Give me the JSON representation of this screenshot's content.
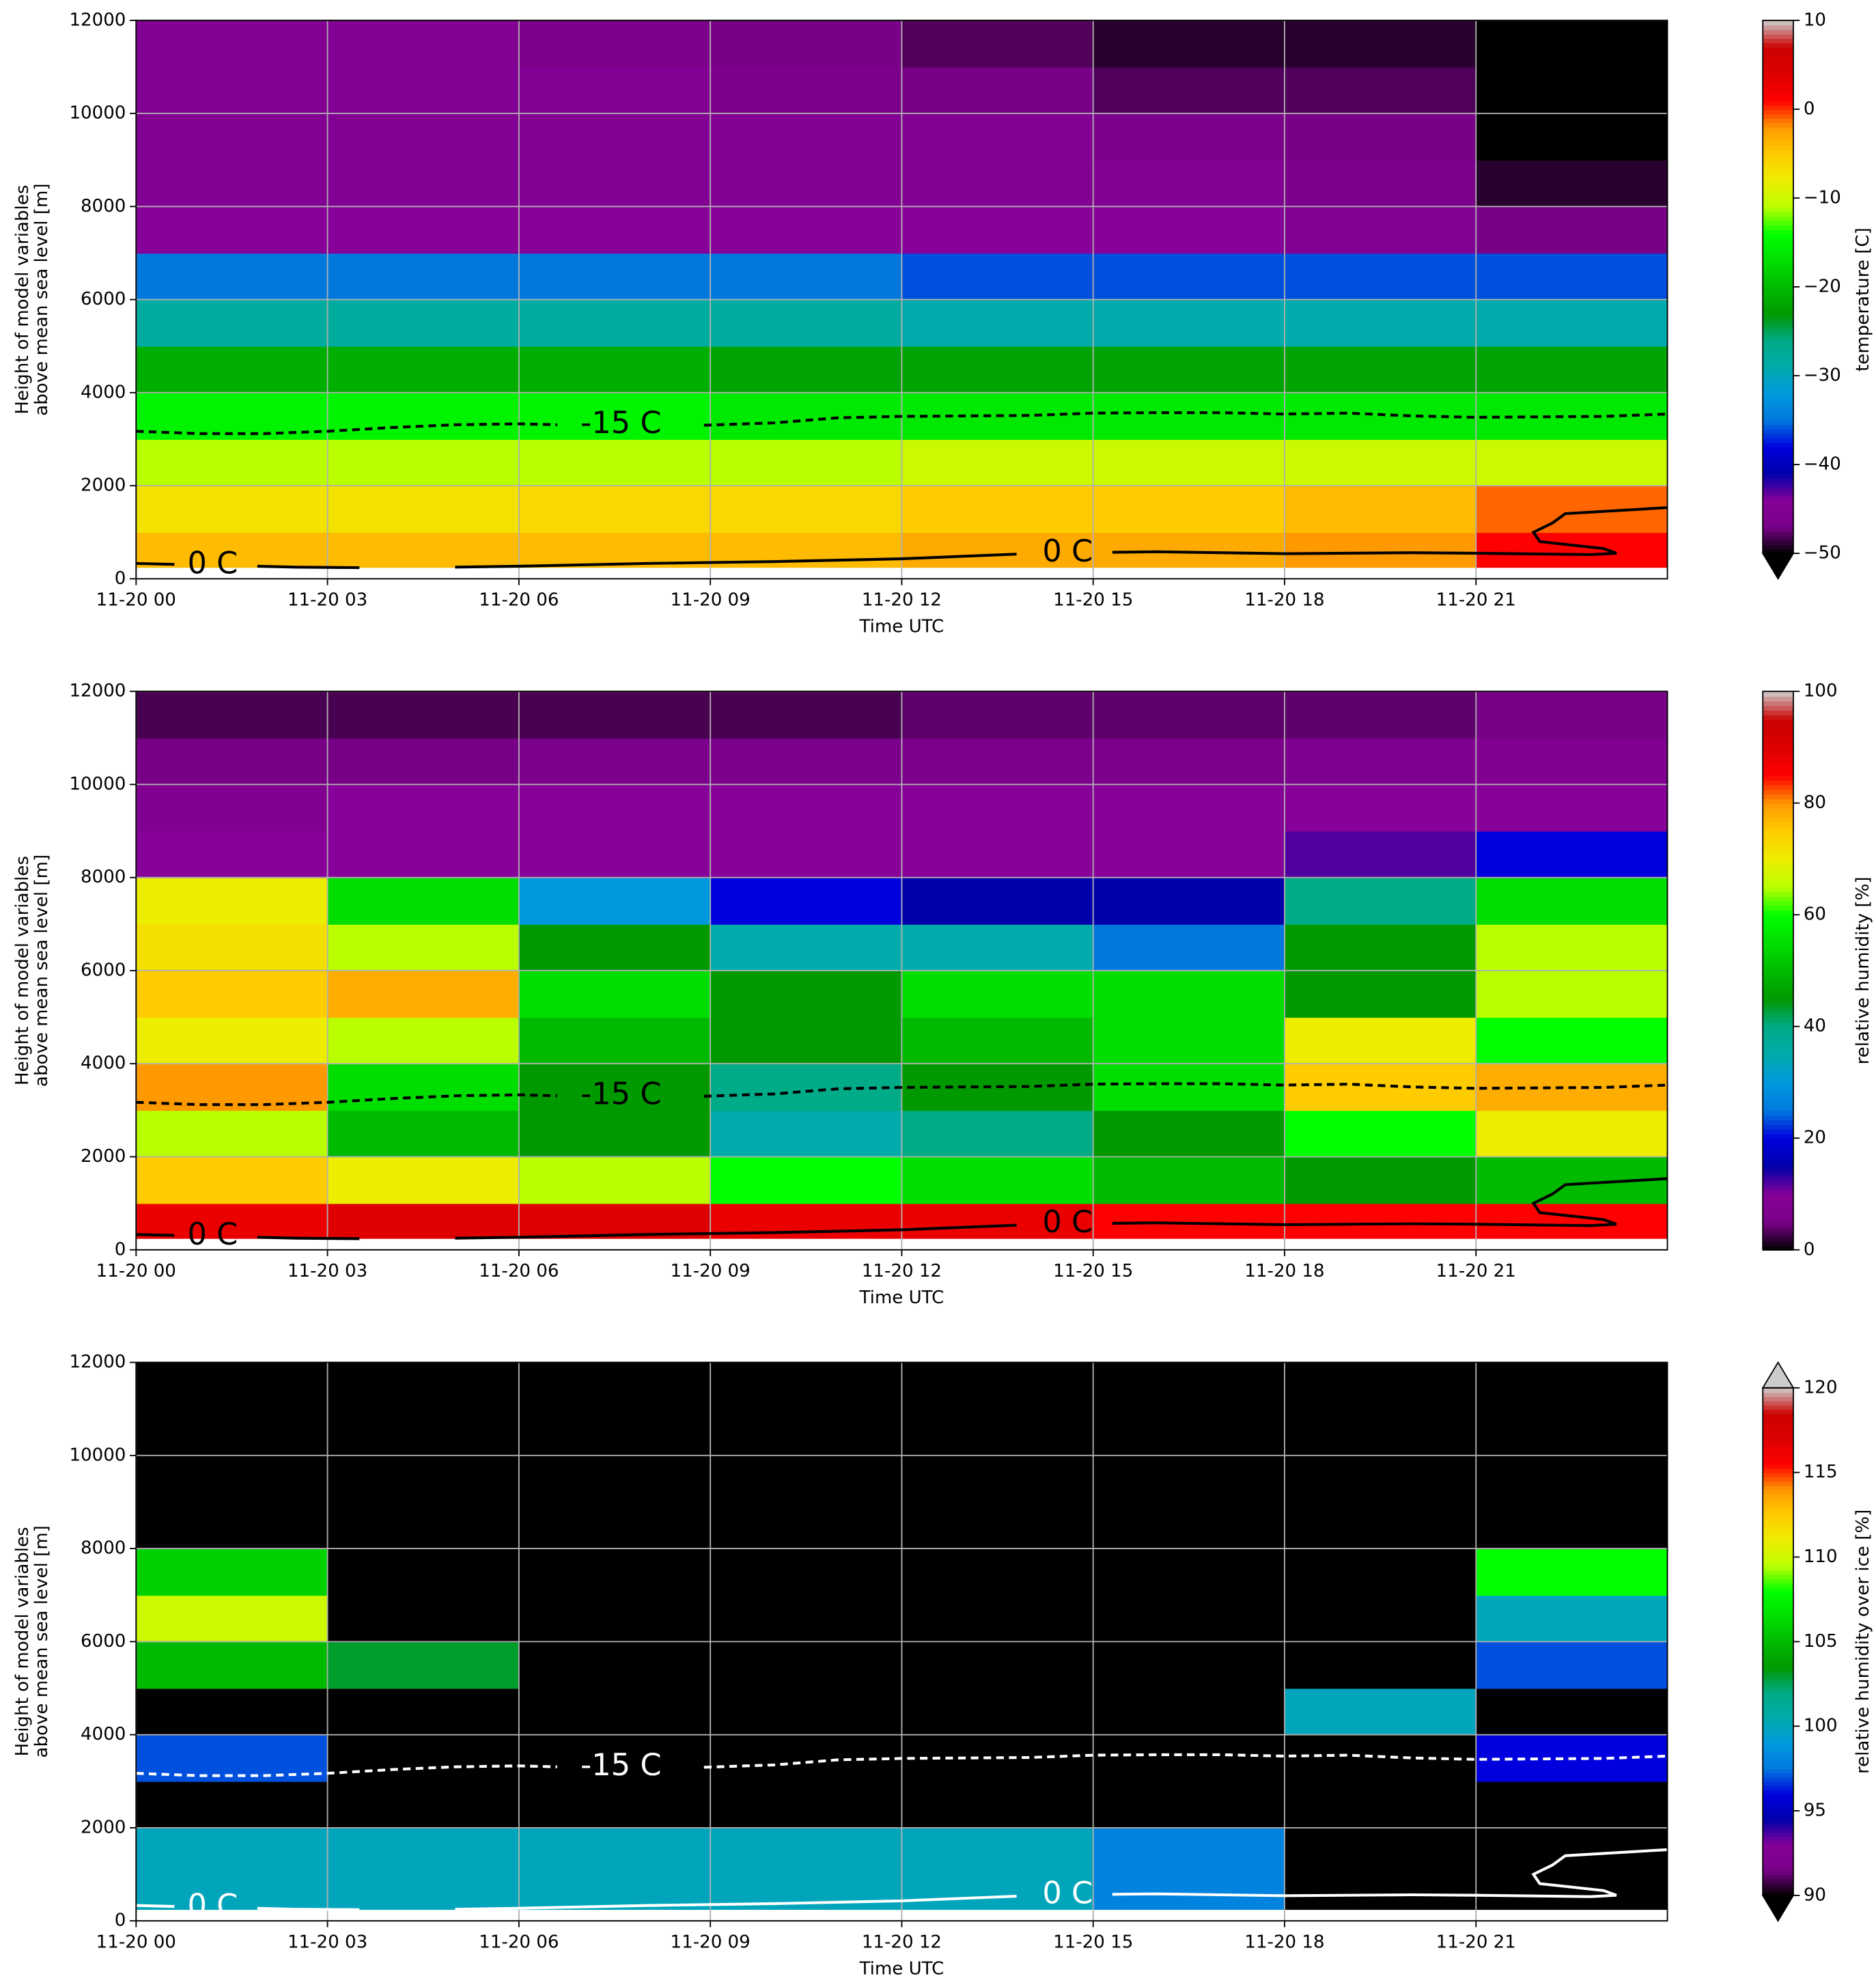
{
  "chart_data": [
    {
      "type": "heatmap",
      "colormap": "nipy_spectral",
      "xlabel": "Time UTC",
      "ylabel": [
        "Height of model variables",
        "above mean sea level [m]"
      ],
      "colorbar_label": "temperature [C]",
      "extend": "min",
      "under_color": "#000000",
      "clim": [
        -50,
        10
      ],
      "cticks": [
        {
          "value": -50,
          "label": "−50"
        },
        {
          "value": -40,
          "label": "−40"
        },
        {
          "value": -30,
          "label": "−30"
        },
        {
          "value": -20,
          "label": "−20"
        },
        {
          "value": -10,
          "label": "−10"
        },
        0,
        10
      ],
      "xlim": [
        0,
        24
      ],
      "ylim": [
        0,
        12000
      ],
      "xticks": [
        {
          "value": 0,
          "label": "11-20 00"
        },
        {
          "value": 3,
          "label": "11-20 03"
        },
        {
          "value": 6,
          "label": "11-20 06"
        },
        {
          "value": 9,
          "label": "11-20 09"
        },
        {
          "value": 12,
          "label": "11-20 12"
        },
        {
          "value": 15,
          "label": "11-20 15"
        },
        {
          "value": 18,
          "label": "11-20 18"
        },
        {
          "value": 21,
          "label": "11-20 21"
        }
      ],
      "yticks": [
        0,
        2000,
        4000,
        6000,
        8000,
        10000,
        12000
      ],
      "grid": true,
      "x_bins": [
        0,
        3,
        6,
        9,
        12,
        15,
        18,
        21,
        24
      ],
      "y_bins": [
        250,
        1000,
        2000,
        3000,
        4000,
        5000,
        6000,
        7000,
        8000,
        9000,
        10000,
        11000,
        12000
      ],
      "z": [
        [
          -4,
          -4,
          -4,
          -4,
          -3,
          -3,
          -2,
          1
        ],
        [
          -7,
          -7,
          -6,
          -6,
          -5,
          -5,
          -4,
          -1
        ],
        [
          -11,
          -11,
          -11,
          -11,
          -10,
          -10,
          -10,
          -10
        ],
        [
          -15,
          -15,
          -15,
          -16,
          -16,
          -16,
          -16,
          -16
        ],
        [
          -21,
          -21,
          -21,
          -22,
          -22,
          -22,
          -22,
          -22
        ],
        [
          -28,
          -28,
          -28,
          -28,
          -29,
          -29,
          -29,
          -29
        ],
        [
          -35,
          -35,
          -35,
          -35,
          -36,
          -36,
          -36,
          -36
        ],
        [
          -44,
          -44,
          -44,
          -44,
          -44,
          -44,
          -45,
          -47
        ],
        [
          -45,
          -45,
          -45,
          -45,
          -45,
          -45,
          -46,
          -49
        ],
        [
          -45,
          -45,
          -45,
          -45,
          -45,
          -46,
          -47,
          -52
        ],
        [
          -45,
          -45,
          -45,
          -46,
          -47,
          -48,
          -48,
          -52
        ],
        [
          -45,
          -45,
          -46,
          -47,
          -48,
          -49,
          -49,
          -52
        ]
      ],
      "contour_color": "#000000",
      "contours": [
        {
          "label": "-15 C",
          "style": "dashed",
          "label_x": [
            7.6
          ],
          "x": [
            0,
            1,
            2,
            3,
            4,
            5,
            6,
            6.6,
            7.6,
            8.9,
            10,
            11,
            12,
            13,
            14,
            15,
            16,
            17,
            18,
            19,
            20,
            21,
            22,
            23,
            24
          ],
          "y": [
            3170,
            3120,
            3120,
            3170,
            3250,
            3310,
            3330,
            3310,
            null,
            3300,
            3350,
            3460,
            3490,
            3500,
            3510,
            3560,
            3570,
            3570,
            3540,
            3560,
            3500,
            3470,
            3480,
            3490,
            3540
          ]
        },
        {
          "label": "0 C",
          "style": "solid",
          "label_x": [
            1.2,
            14.6
          ],
          "x": [
            0,
            0.6,
            1.2,
            1.9,
            2.5,
            3.5,
            4.2,
            5,
            6,
            8,
            10,
            12,
            13.8,
            14.6,
            15.3,
            16,
            18,
            20,
            21,
            22.8,
            23.2,
            23.0,
            22.0,
            21.9,
            22.2,
            22.4,
            24
          ],
          "y": [
            330,
            310,
            null,
            270,
            250,
            240,
            null,
            250,
            270,
            330,
            370,
            430,
            530,
            null,
            570,
            580,
            540,
            560,
            550,
            520,
            550,
            650,
            800,
            1000,
            1200,
            1400,
            1530
          ]
        }
      ]
    },
    {
      "type": "heatmap",
      "colormap": "nipy_spectral",
      "xlabel": "Time UTC",
      "ylabel": [
        "Height of model variables",
        "above mean sea level [m]"
      ],
      "colorbar_label": "relative humidity [%]",
      "extend": "neither",
      "clim": [
        0,
        100
      ],
      "cticks": [
        0,
        20,
        40,
        60,
        80,
        100
      ],
      "xlim": [
        0,
        24
      ],
      "ylim": [
        0,
        12000
      ],
      "xticks": [
        {
          "value": 0,
          "label": "11-20 00"
        },
        {
          "value": 3,
          "label": "11-20 03"
        },
        {
          "value": 6,
          "label": "11-20 06"
        },
        {
          "value": 9,
          "label": "11-20 09"
        },
        {
          "value": 12,
          "label": "11-20 12"
        },
        {
          "value": 15,
          "label": "11-20 15"
        },
        {
          "value": 18,
          "label": "11-20 18"
        },
        {
          "value": 21,
          "label": "11-20 21"
        }
      ],
      "yticks": [
        0,
        2000,
        4000,
        6000,
        8000,
        10000,
        12000
      ],
      "grid": true,
      "x_bins": [
        0,
        3,
        6,
        9,
        12,
        15,
        18,
        21,
        24
      ],
      "y_bins": [
        250,
        1000,
        2000,
        3000,
        4000,
        5000,
        6000,
        7000,
        8000,
        9000,
        10000,
        11000,
        12000
      ],
      "z": [
        [
          88,
          90,
          90,
          88,
          88,
          85,
          85,
          85
        ],
        [
          75,
          70,
          65,
          60,
          55,
          50,
          45,
          50
        ],
        [
          65,
          50,
          45,
          35,
          40,
          45,
          60,
          70
        ],
        [
          80,
          55,
          45,
          40,
          45,
          55,
          75,
          78
        ],
        [
          70,
          65,
          50,
          45,
          50,
          55,
          70,
          60
        ],
        [
          75,
          78,
          55,
          45,
          55,
          55,
          45,
          65
        ],
        [
          72,
          65,
          45,
          35,
          35,
          25,
          45,
          65
        ],
        [
          70,
          55,
          30,
          20,
          15,
          15,
          40,
          55
        ],
        [
          10,
          10,
          10,
          10,
          10,
          10,
          12,
          20
        ],
        [
          8,
          10,
          10,
          10,
          10,
          10,
          10,
          10
        ],
        [
          5,
          5,
          6,
          6,
          6,
          6,
          7,
          8
        ],
        [
          3,
          3,
          3,
          3,
          4,
          4,
          4,
          5
        ]
      ],
      "contour_color": "#000000",
      "contours": [
        {
          "label": "-15 C",
          "style": "dashed",
          "label_x": [
            7.6
          ],
          "x": [
            0,
            1,
            2,
            3,
            4,
            5,
            6,
            6.6,
            7.6,
            8.9,
            10,
            11,
            12,
            13,
            14,
            15,
            16,
            17,
            18,
            19,
            20,
            21,
            22,
            23,
            24
          ],
          "y": [
            3170,
            3120,
            3120,
            3170,
            3250,
            3310,
            3330,
            3310,
            null,
            3300,
            3350,
            3460,
            3490,
            3500,
            3510,
            3560,
            3570,
            3570,
            3540,
            3560,
            3500,
            3470,
            3480,
            3490,
            3540
          ]
        },
        {
          "label": "0 C",
          "style": "solid",
          "label_x": [
            1.2,
            14.6
          ],
          "x": [
            0,
            0.6,
            1.2,
            1.9,
            2.5,
            3.5,
            4.2,
            5,
            6,
            8,
            10,
            12,
            13.8,
            14.6,
            15.3,
            16,
            18,
            20,
            21,
            22.8,
            23.2,
            23.0,
            22.0,
            21.9,
            22.2,
            22.4,
            24
          ],
          "y": [
            330,
            310,
            null,
            270,
            250,
            240,
            null,
            250,
            270,
            330,
            370,
            430,
            530,
            null,
            570,
            580,
            540,
            560,
            550,
            520,
            550,
            650,
            800,
            1000,
            1200,
            1400,
            1530
          ]
        }
      ]
    },
    {
      "type": "heatmap",
      "colormap": "nipy_spectral",
      "xlabel": "Time UTC",
      "ylabel": [
        "Height of model variables",
        "above mean sea level [m]"
      ],
      "colorbar_label": "relative humidity over ice [%]",
      "extend": "both",
      "under_color": "#000000",
      "over_color": "#cccccc",
      "clim": [
        90,
        120
      ],
      "cticks": [
        90,
        95,
        100,
        105,
        110,
        115,
        120
      ],
      "xlim": [
        0,
        24
      ],
      "ylim": [
        0,
        12000
      ],
      "xticks": [
        {
          "value": 0,
          "label": "11-20 00"
        },
        {
          "value": 3,
          "label": "11-20 03"
        },
        {
          "value": 6,
          "label": "11-20 06"
        },
        {
          "value": 9,
          "label": "11-20 09"
        },
        {
          "value": 12,
          "label": "11-20 12"
        },
        {
          "value": 15,
          "label": "11-20 15"
        },
        {
          "value": 18,
          "label": "11-20 18"
        },
        {
          "value": 21,
          "label": "11-20 21"
        }
      ],
      "yticks": [
        0,
        2000,
        4000,
        6000,
        8000,
        10000,
        12000
      ],
      "grid": true,
      "x_bins": [
        0,
        3,
        6,
        9,
        12,
        15,
        18,
        21,
        24
      ],
      "y_bins": [
        250,
        1000,
        2000,
        3000,
        4000,
        5000,
        6000,
        7000,
        8000,
        9000,
        10000,
        11000,
        12000
      ],
      "z": [
        [
          100,
          100,
          100,
          100,
          100,
          98,
          85,
          85
        ],
        [
          100,
          100,
          100,
          100,
          100,
          98,
          85,
          85
        ],
        [
          85,
          85,
          85,
          85,
          85,
          85,
          85,
          85
        ],
        [
          97,
          85,
          85,
          85,
          85,
          85,
          85,
          96
        ],
        [
          85,
          85,
          85,
          85,
          85,
          85,
          100,
          85
        ],
        [
          105,
          103,
          85,
          85,
          85,
          85,
          85,
          97
        ],
        [
          110,
          85,
          85,
          85,
          85,
          85,
          85,
          100
        ],
        [
          106,
          85,
          85,
          85,
          85,
          85,
          85,
          108
        ],
        [
          85,
          85,
          85,
          85,
          85,
          85,
          85,
          85
        ],
        [
          85,
          85,
          85,
          85,
          85,
          85,
          85,
          85
        ],
        [
          85,
          85,
          85,
          85,
          85,
          85,
          85,
          85
        ],
        [
          85,
          85,
          85,
          85,
          85,
          85,
          85,
          85
        ]
      ],
      "contour_color": "#ffffff",
      "contours": [
        {
          "label": "-15 C",
          "style": "dashed",
          "label_x": [
            7.6
          ],
          "x": [
            0,
            1,
            2,
            3,
            4,
            5,
            6,
            6.6,
            7.6,
            8.9,
            10,
            11,
            12,
            13,
            14,
            15,
            16,
            17,
            18,
            19,
            20,
            21,
            22,
            23,
            24
          ],
          "y": [
            3170,
            3120,
            3120,
            3170,
            3250,
            3310,
            3330,
            3310,
            null,
            3300,
            3350,
            3460,
            3490,
            3500,
            3510,
            3560,
            3570,
            3570,
            3540,
            3560,
            3500,
            3470,
            3480,
            3490,
            3540
          ]
        },
        {
          "label": "0 C",
          "style": "solid",
          "label_x": [
            1.2,
            14.6
          ],
          "x": [
            0,
            0.6,
            1.2,
            1.9,
            2.5,
            3.5,
            4.2,
            5,
            6,
            8,
            10,
            12,
            13.8,
            14.6,
            15.3,
            16,
            18,
            20,
            21,
            22.8,
            23.2,
            23.0,
            22.0,
            21.9,
            22.2,
            22.4,
            24
          ],
          "y": [
            330,
            310,
            null,
            270,
            250,
            240,
            null,
            250,
            270,
            330,
            370,
            430,
            530,
            null,
            570,
            580,
            540,
            560,
            550,
            520,
            550,
            650,
            800,
            1000,
            1200,
            1400,
            1530
          ]
        }
      ]
    }
  ]
}
